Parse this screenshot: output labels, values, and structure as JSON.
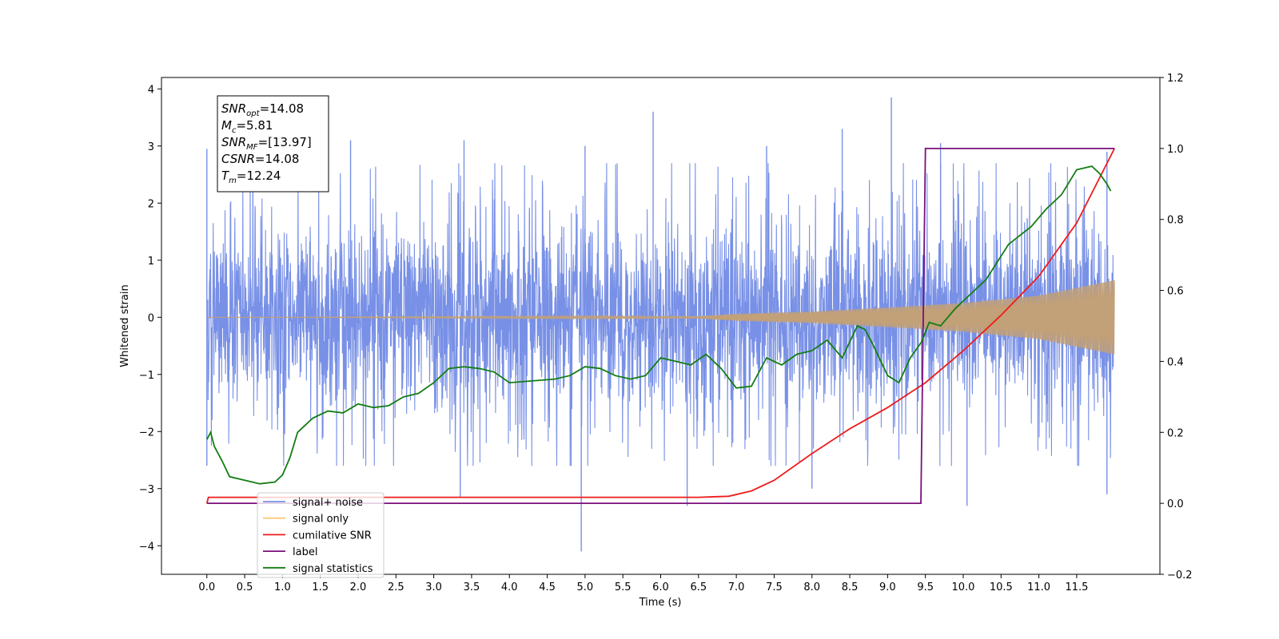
{
  "chart_data": {
    "type": "line",
    "xlabel": "Time (s)",
    "ylabel": "Whitened strain",
    "xlim": [
      -0.6,
      12.6
    ],
    "ylim": [
      -4.5,
      4.2
    ],
    "y2lim": [
      -0.2,
      1.2
    ],
    "x_ticks": [
      0.0,
      0.5,
      1.0,
      1.5,
      2.0,
      2.5,
      3.0,
      3.5,
      4.0,
      4.5,
      5.0,
      5.5,
      6.0,
      6.5,
      7.0,
      7.5,
      8.0,
      8.5,
      9.0,
      9.5,
      10.0,
      10.5,
      11.0,
      11.5
    ],
    "x_tick_labels": [
      "0.0",
      "0.5",
      "1.0",
      "1.5",
      "2.0",
      "2.5",
      "3.0",
      "3.5",
      "4.0",
      "4.5",
      "5.0",
      "5.5",
      "6.0",
      "6.5",
      "7.0",
      "7.5",
      "8.0",
      "8.5",
      "9.0",
      "9.5",
      "10.0",
      "10.5",
      "11.0",
      "11.5"
    ],
    "y_ticks": [
      -4,
      -3,
      -2,
      -1,
      0,
      1,
      2,
      3,
      4
    ],
    "y_tick_labels": [
      "−4",
      "−3",
      "−2",
      "−1",
      "0",
      "1",
      "2",
      "3",
      "4"
    ],
    "y2_ticks": [
      -0.2,
      0.0,
      0.2,
      0.4,
      0.6,
      0.8,
      1.0,
      1.2
    ],
    "y2_tick_labels": [
      "−0.2",
      "0.0",
      "0.2",
      "0.4",
      "0.6",
      "0.8",
      "1.0",
      "1.2"
    ],
    "grid": false,
    "legend_position": "lower-left",
    "series": [
      {
        "name": "signal+ noise",
        "axis": "left",
        "color": "#7890e6",
        "kind": "noise",
        "x_range": [
          0.0,
          11.99
        ],
        "amplitude_typical": 1.5,
        "peaks_up": [
          [
            0.0,
            2.95
          ],
          [
            1.9,
            3.1
          ],
          [
            3.4,
            3.1
          ],
          [
            5.0,
            3.0
          ],
          [
            5.9,
            3.6
          ],
          [
            7.4,
            3.0
          ],
          [
            8.4,
            3.3
          ],
          [
            9.05,
            3.85
          ],
          [
            9.7,
            3.05
          ],
          [
            11.9,
            2.9
          ]
        ],
        "peaks_down": [
          [
            0.0,
            -2.6
          ],
          [
            3.35,
            -3.15
          ],
          [
            4.95,
            -4.1
          ],
          [
            6.35,
            -3.3
          ],
          [
            8.0,
            -3.0
          ],
          [
            10.05,
            -3.3
          ],
          [
            11.9,
            -3.1
          ]
        ]
      },
      {
        "name": "signal only",
        "axis": "left",
        "color": "#c2a078",
        "kind": "chirp",
        "x_range": [
          0.0,
          12.0
        ],
        "envelope": [
          [
            0.0,
            0.0
          ],
          [
            6.5,
            0.02
          ],
          [
            7.0,
            0.06
          ],
          [
            8.0,
            0.1
          ],
          [
            9.0,
            0.17
          ],
          [
            10.0,
            0.25
          ],
          [
            11.0,
            0.38
          ],
          [
            12.0,
            0.65
          ]
        ]
      },
      {
        "name": "cumilative SNR",
        "axis": "right",
        "color": "#ee1c1c",
        "points": [
          [
            0.0,
            0.0
          ],
          [
            0.02,
            0.017
          ],
          [
            6.5,
            0.017
          ],
          [
            6.9,
            0.02
          ],
          [
            7.2,
            0.035
          ],
          [
            7.5,
            0.065
          ],
          [
            8.0,
            0.14
          ],
          [
            8.5,
            0.21
          ],
          [
            9.0,
            0.27
          ],
          [
            9.5,
            0.34
          ],
          [
            10.0,
            0.43
          ],
          [
            10.5,
            0.53
          ],
          [
            11.0,
            0.64
          ],
          [
            11.5,
            0.79
          ],
          [
            12.0,
            1.0
          ]
        ]
      },
      {
        "name": "label",
        "axis": "right",
        "color": "#7b0f7b",
        "points": [
          [
            0.0,
            0.0
          ],
          [
            9.44,
            0.0
          ],
          [
            9.5,
            1.0
          ],
          [
            12.0,
            1.0
          ]
        ]
      },
      {
        "name": "signal statistics",
        "axis": "right",
        "color": "#137d13",
        "points": [
          [
            0.0,
            0.18
          ],
          [
            0.05,
            0.2
          ],
          [
            0.1,
            0.16
          ],
          [
            0.2,
            0.12
          ],
          [
            0.3,
            0.075
          ],
          [
            0.5,
            0.065
          ],
          [
            0.7,
            0.055
          ],
          [
            0.9,
            0.06
          ],
          [
            1.0,
            0.08
          ],
          [
            1.1,
            0.13
          ],
          [
            1.2,
            0.2
          ],
          [
            1.4,
            0.24
          ],
          [
            1.6,
            0.26
          ],
          [
            1.8,
            0.255
          ],
          [
            2.0,
            0.28
          ],
          [
            2.2,
            0.27
          ],
          [
            2.4,
            0.275
          ],
          [
            2.6,
            0.3
          ],
          [
            2.8,
            0.31
          ],
          [
            3.0,
            0.34
          ],
          [
            3.2,
            0.38
          ],
          [
            3.4,
            0.385
          ],
          [
            3.6,
            0.38
          ],
          [
            3.8,
            0.37
          ],
          [
            4.0,
            0.34
          ],
          [
            4.3,
            0.345
          ],
          [
            4.6,
            0.35
          ],
          [
            4.8,
            0.36
          ],
          [
            5.0,
            0.385
          ],
          [
            5.2,
            0.38
          ],
          [
            5.4,
            0.36
          ],
          [
            5.6,
            0.35
          ],
          [
            5.8,
            0.36
          ],
          [
            6.0,
            0.41
          ],
          [
            6.2,
            0.4
          ],
          [
            6.4,
            0.39
          ],
          [
            6.6,
            0.42
          ],
          [
            6.8,
            0.38
          ],
          [
            7.0,
            0.325
          ],
          [
            7.2,
            0.33
          ],
          [
            7.4,
            0.41
          ],
          [
            7.6,
            0.39
          ],
          [
            7.8,
            0.42
          ],
          [
            8.0,
            0.43
          ],
          [
            8.2,
            0.46
          ],
          [
            8.4,
            0.41
          ],
          [
            8.6,
            0.5
          ],
          [
            8.7,
            0.49
          ],
          [
            8.8,
            0.45
          ],
          [
            9.0,
            0.36
          ],
          [
            9.15,
            0.34
          ],
          [
            9.3,
            0.41
          ],
          [
            9.45,
            0.455
          ],
          [
            9.55,
            0.51
          ],
          [
            9.7,
            0.5
          ],
          [
            9.9,
            0.55
          ],
          [
            10.1,
            0.59
          ],
          [
            10.3,
            0.63
          ],
          [
            10.6,
            0.73
          ],
          [
            10.9,
            0.78
          ],
          [
            11.1,
            0.83
          ],
          [
            11.3,
            0.87
          ],
          [
            11.5,
            0.94
          ],
          [
            11.7,
            0.95
          ],
          [
            11.8,
            0.93
          ],
          [
            11.9,
            0.9
          ],
          [
            11.95,
            0.88
          ]
        ]
      }
    ],
    "legend_entries": [
      {
        "name": "signal+ noise",
        "color": "#7890e6"
      },
      {
        "name": "signal only",
        "color": "#ffc875"
      },
      {
        "name": "cumilative SNR",
        "color": "#ee1c1c"
      },
      {
        "name": "label",
        "color": "#7b0f7b"
      },
      {
        "name": "signal statistics",
        "color": "#137d13"
      }
    ],
    "annotation_box": [
      {
        "main": "SNR",
        "sub": "opt",
        "rest": "=14.08"
      },
      {
        "main": "M",
        "sub": "c",
        "rest": "=5.81"
      },
      {
        "main": "SNR",
        "sub": "MF",
        "rest": "=[13.97]"
      },
      {
        "main": "CSNR",
        "sub": "",
        "rest": "=14.08"
      },
      {
        "main": "T",
        "sub": "m",
        "rest": "=12.24"
      }
    ]
  }
}
